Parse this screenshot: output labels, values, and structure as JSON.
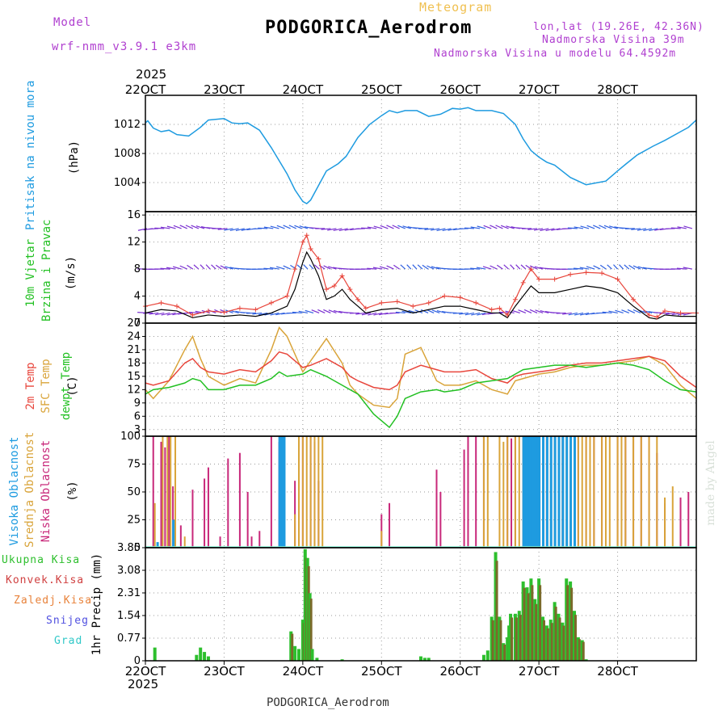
{
  "header": {
    "model_label": "Model",
    "model_name": "wrf-nmm_v3.9.1 e3km",
    "chart_kind": "Meteogram",
    "station": "PODGORICA_Aerodrom",
    "lonlat": "lon,lat (19.26E, 42.36N)",
    "elevation": "Nadmorska Visina 39m",
    "model_elevation": "Nadmorska Visina u modelu 64.4592m",
    "year_top": "2025",
    "year_bottom": "2025",
    "footer_station": "PODGORICA_Aerodrom",
    "credit": "made by Angel"
  },
  "colors": {
    "pressure": "#1e9be0",
    "temp2m": "#e8463c",
    "sfctemp": "#d9a43a",
    "dewpt": "#22c022",
    "high_cloud": "#1e9be0",
    "mid_cloud": "#d9a43a",
    "low_cloud": "#c8287a",
    "total_precip": "#2dbf2d",
    "conv_precip": "#d04040",
    "frz_precip": "#e8823a",
    "snow": "#5050e0",
    "hail": "#30c8c8",
    "wind_speed": "#000000",
    "gust": "#e8463c",
    "magenta_label": "#b040d0"
  },
  "x_axis": {
    "ticks": [
      "22OCT",
      "23OCT",
      "24OCT",
      "25OCT",
      "26OCT",
      "27OCT",
      "28OCT"
    ]
  },
  "chart_data": [
    {
      "type": "line",
      "name": "pressure",
      "ylabel": "Pritisak na nivou mora",
      "unit": "(hPa)",
      "yticks": [
        "1004",
        "1008",
        "1012"
      ],
      "ylim": [
        1000,
        1016
      ],
      "series": [
        {
          "name": "MSLP",
          "x": [
            0,
            0.03,
            0.1,
            0.2,
            0.3,
            0.4,
            0.55,
            0.7,
            0.8,
            1.0,
            1.1,
            1.2,
            1.3,
            1.45,
            1.6,
            1.8,
            1.9,
            2.0,
            2.05,
            2.1,
            2.2,
            2.3,
            2.45,
            2.55,
            2.7,
            2.85,
            3.0,
            3.1,
            3.2,
            3.3,
            3.45,
            3.6,
            3.75,
            3.9,
            4.0,
            4.1,
            4.2,
            4.4,
            4.55,
            4.7,
            4.8,
            4.9,
            5.0,
            5.1,
            5.2,
            5.4,
            5.6,
            5.75,
            5.85,
            6.0,
            6.1,
            6.25,
            6.45,
            6.6,
            6.8,
            6.9,
            7.0
          ],
          "values": [
            1012.2,
            1012.5,
            1011.5,
            1011.0,
            1011.2,
            1010.6,
            1010.4,
            1011.6,
            1012.6,
            1012.8,
            1012.2,
            1012.1,
            1012.2,
            1011.2,
            1008.8,
            1005.2,
            1003.0,
            1001.4,
            1001.1,
            1001.6,
            1003.6,
            1005.6,
            1006.6,
            1007.6,
            1010.2,
            1012.0,
            1013.2,
            1013.9,
            1013.6,
            1013.9,
            1013.9,
            1013.1,
            1013.4,
            1014.2,
            1014.1,
            1014.3,
            1013.9,
            1013.9,
            1013.5,
            1012.0,
            1010.0,
            1008.4,
            1007.5,
            1006.8,
            1006.4,
            1004.7,
            1003.7,
            1004.0,
            1004.2,
            1005.6,
            1006.5,
            1007.8,
            1009.0,
            1009.8,
            1011.0,
            1011.6,
            1012.6
          ]
        }
      ]
    },
    {
      "type": "line",
      "name": "wind",
      "ylabel": "10m Vjetar",
      "ylabel2": "Brzina i Pravac",
      "unit": "(m/s)",
      "compass": "N",
      "yticks": [
        "0",
        "4",
        "8",
        "12",
        "16"
      ],
      "ylim": [
        0,
        16.5
      ],
      "series": [
        {
          "name": "wind speed",
          "x": [
            0,
            0.2,
            0.4,
            0.6,
            0.8,
            1.0,
            1.2,
            1.4,
            1.6,
            1.8,
            1.9,
            2.0,
            2.05,
            2.1,
            2.2,
            2.3,
            2.4,
            2.5,
            2.6,
            2.7,
            2.8,
            3.0,
            3.2,
            3.4,
            3.6,
            3.8,
            4.0,
            4.2,
            4.4,
            4.5,
            4.6,
            4.7,
            4.8,
            4.9,
            5.0,
            5.2,
            5.4,
            5.6,
            5.8,
            6.0,
            6.2,
            6.4,
            6.5,
            6.6,
            6.8,
            7.0
          ],
          "values": [
            1.5,
            2.0,
            1.8,
            0.8,
            1.2,
            1.0,
            1.2,
            1.0,
            1.5,
            2.5,
            5.0,
            9.0,
            10.5,
            9.5,
            7.0,
            3.5,
            4.0,
            5.0,
            3.5,
            2.5,
            1.5,
            2.0,
            2.2,
            1.5,
            2.0,
            2.5,
            2.5,
            2.0,
            1.5,
            1.5,
            0.8,
            2.5,
            4.0,
            5.5,
            4.5,
            4.5,
            5.0,
            5.5,
            5.2,
            4.5,
            2.5,
            0.8,
            0.6,
            1.2,
            1.0,
            1.0
          ]
        },
        {
          "name": "gust",
          "x": [
            0,
            0.2,
            0.4,
            0.6,
            0.8,
            1.0,
            1.2,
            1.4,
            1.6,
            1.8,
            1.9,
            2.0,
            2.05,
            2.1,
            2.2,
            2.3,
            2.4,
            2.5,
            2.6,
            2.7,
            2.8,
            3.0,
            3.2,
            3.4,
            3.6,
            3.8,
            4.0,
            4.2,
            4.4,
            4.5,
            4.6,
            4.7,
            4.8,
            4.9,
            5.0,
            5.2,
            5.4,
            5.6,
            5.8,
            6.0,
            6.2,
            6.4,
            6.5,
            6.6,
            6.8,
            7.0
          ],
          "values": [
            2.5,
            3.0,
            2.5,
            1.2,
            1.8,
            1.6,
            2.2,
            2.0,
            3.0,
            4.0,
            8.0,
            12.0,
            13.0,
            11.0,
            9.5,
            5.0,
            5.5,
            7.0,
            5.0,
            3.5,
            2.2,
            3.0,
            3.2,
            2.5,
            3.0,
            4.0,
            3.8,
            3.0,
            2.0,
            2.2,
            1.2,
            3.5,
            6.0,
            8.0,
            6.5,
            6.5,
            7.2,
            7.5,
            7.4,
            6.5,
            3.5,
            1.2,
            0.9,
            1.8,
            1.5,
            1.5
          ]
        }
      ],
      "arrow_rows": [
        1.5,
        8,
        14
      ]
    },
    {
      "type": "line",
      "name": "temperature",
      "ylabel": "2m Temp",
      "ylabel2": "SFC Temp",
      "ylabel3": "dewpt Temp",
      "unit": "(C)",
      "yticks": [
        "3",
        "6",
        "9",
        "12",
        "15",
        "18",
        "21",
        "24",
        "27"
      ],
      "ylim": [
        1.5,
        27
      ],
      "series": [
        {
          "name": "2m Temp",
          "x": [
            0,
            0.1,
            0.3,
            0.5,
            0.6,
            0.7,
            0.8,
            1.0,
            1.2,
            1.4,
            1.6,
            1.7,
            1.8,
            2.0,
            2.1,
            2.3,
            2.5,
            2.6,
            2.7,
            2.9,
            3.1,
            3.2,
            3.3,
            3.5,
            3.7,
            3.8,
            4.0,
            4.2,
            4.4,
            4.6,
            4.7,
            4.8,
            5.0,
            5.2,
            5.4,
            5.6,
            5.8,
            6.0,
            6.2,
            6.4,
            6.6,
            6.8,
            7.0
          ],
          "values": [
            13.5,
            13.0,
            14.0,
            18.0,
            19.0,
            17.0,
            16.0,
            15.5,
            16.5,
            16.0,
            18.5,
            20.5,
            20.0,
            17.0,
            17.5,
            19.0,
            17.0,
            15.0,
            14.0,
            12.5,
            12.0,
            13.0,
            16.0,
            17.5,
            16.5,
            16.0,
            16.0,
            16.5,
            14.5,
            13.5,
            15.0,
            15.5,
            16.0,
            16.5,
            17.5,
            18.0,
            18.0,
            18.5,
            19.0,
            19.5,
            18.5,
            15.0,
            12.5
          ]
        },
        {
          "name": "SFC Temp",
          "x": [
            0,
            0.1,
            0.3,
            0.5,
            0.6,
            0.7,
            0.8,
            1.0,
            1.2,
            1.4,
            1.6,
            1.7,
            1.8,
            2.0,
            2.1,
            2.3,
            2.5,
            2.6,
            2.7,
            2.9,
            3.1,
            3.2,
            3.3,
            3.5,
            3.7,
            3.8,
            4.0,
            4.2,
            4.4,
            4.6,
            4.7,
            4.8,
            5.0,
            5.2,
            5.4,
            5.6,
            5.8,
            6.0,
            6.2,
            6.4,
            6.6,
            6.8,
            7.0
          ],
          "values": [
            12.0,
            10.0,
            14.0,
            21.0,
            24.0,
            19.0,
            15.0,
            13.0,
            14.5,
            13.5,
            21.0,
            26.0,
            24.0,
            16.0,
            18.5,
            23.5,
            18.0,
            13.0,
            11.0,
            8.5,
            8.0,
            10.0,
            20.0,
            21.5,
            14.0,
            13.0,
            13.0,
            14.0,
            12.0,
            11.0,
            14.0,
            14.5,
            15.5,
            16.0,
            17.0,
            17.5,
            17.5,
            18.0,
            18.5,
            19.5,
            17.5,
            13.0,
            10.0
          ]
        },
        {
          "name": "dewpt Temp",
          "x": [
            0,
            0.1,
            0.3,
            0.5,
            0.6,
            0.7,
            0.8,
            1.0,
            1.2,
            1.4,
            1.6,
            1.7,
            1.8,
            2.0,
            2.1,
            2.3,
            2.5,
            2.6,
            2.7,
            2.9,
            3.1,
            3.2,
            3.3,
            3.5,
            3.7,
            3.8,
            4.0,
            4.2,
            4.4,
            4.6,
            4.7,
            4.8,
            5.0,
            5.2,
            5.4,
            5.6,
            5.8,
            6.0,
            6.2,
            6.4,
            6.6,
            6.8,
            7.0
          ],
          "values": [
            11.0,
            12.0,
            12.5,
            13.5,
            14.5,
            14.0,
            12.0,
            12.0,
            13.0,
            13.0,
            14.5,
            16.0,
            15.0,
            15.5,
            16.5,
            15.0,
            13.0,
            12.0,
            11.0,
            6.5,
            3.5,
            6.0,
            10.0,
            11.5,
            12.0,
            11.5,
            12.0,
            13.5,
            14.0,
            14.5,
            15.5,
            16.5,
            17.0,
            17.5,
            17.5,
            17.0,
            17.5,
            18.0,
            17.5,
            16.5,
            14.0,
            12.0,
            11.5
          ]
        }
      ]
    },
    {
      "type": "bar",
      "name": "clouds",
      "ylabel": "Visoka Oblacnost",
      "ylabel2": "Srednja Oblacnost",
      "ylabel3": "Niska Oblacnost",
      "unit": "(%)",
      "yticks": [
        "0",
        "25",
        "50",
        "75",
        "100"
      ],
      "ylim": [
        0,
        100
      ],
      "series": [
        {
          "name": "Niska",
          "x": [
            0.1,
            0.2,
            0.25,
            0.3,
            0.35,
            0.45,
            0.6,
            0.75,
            0.8,
            0.95,
            1.05,
            1.2,
            1.3,
            1.35,
            1.45,
            1.6,
            1.7,
            1.75,
            1.9,
            2.0,
            2.1,
            2.15,
            2.2,
            3.0,
            3.1,
            3.7,
            3.75,
            4.05,
            4.1,
            4.2,
            4.3,
            4.6,
            4.65,
            4.7,
            4.8,
            4.9,
            5.0,
            5.1,
            5.2,
            5.3,
            5.4,
            5.5,
            5.6,
            5.7,
            5.8,
            6.0,
            6.1,
            6.2,
            6.3,
            6.4,
            6.5,
            6.6,
            6.8,
            6.9
          ],
          "values": [
            100,
            95,
            90,
            100,
            55,
            20,
            52,
            62,
            72,
            10,
            80,
            85,
            50,
            10,
            15,
            100,
            95,
            100,
            60,
            100,
            100,
            95,
            60,
            30,
            40,
            70,
            50,
            88,
            100,
            100,
            100,
            100,
            98,
            100,
            100,
            100,
            100,
            100,
            100,
            100,
            100,
            100,
            100,
            100,
            100,
            100,
            100,
            100,
            100,
            100,
            85,
            40,
            45,
            50
          ]
        },
        {
          "name": "Srednja",
          "x": [
            0.12,
            0.22,
            0.28,
            0.32,
            0.38,
            0.5,
            1.9,
            1.95,
            2.0,
            2.05,
            2.1,
            2.15,
            2.2,
            2.25,
            3.0,
            4.3,
            4.35,
            4.5,
            4.55,
            4.6,
            4.7,
            4.75,
            4.8,
            4.85,
            4.9,
            4.95,
            5.0,
            5.05,
            5.1,
            5.15,
            5.2,
            5.25,
            5.3,
            5.35,
            5.4,
            5.5,
            5.55,
            5.6,
            5.65,
            5.7,
            5.8,
            5.85,
            5.9,
            6.0,
            6.05,
            6.1,
            6.2,
            6.3,
            6.4,
            6.5,
            6.6,
            6.7
          ],
          "values": [
            40,
            100,
            100,
            100,
            100,
            10,
            30,
            100,
            100,
            100,
            100,
            100,
            100,
            100,
            15,
            100,
            100,
            100,
            95,
            100,
            100,
            100,
            100,
            100,
            100,
            100,
            100,
            100,
            100,
            100,
            100,
            100,
            100,
            100,
            100,
            100,
            100,
            100,
            100,
            100,
            100,
            100,
            100,
            100,
            100,
            100,
            100,
            100,
            100,
            100,
            45,
            55
          ]
        },
        {
          "name": "Visoka",
          "x": [
            0.15,
            0.35,
            1.7,
            1.72,
            1.74,
            1.76,
            4.8,
            4.82,
            4.84,
            4.86,
            4.88,
            4.9,
            4.92,
            4.94,
            4.96,
            4.98,
            5.0,
            5.05,
            5.1,
            5.15,
            5.2,
            5.25,
            5.3,
            5.35,
            5.4,
            5.45
          ],
          "values": [
            5,
            25,
            100,
            100,
            100,
            100,
            100,
            100,
            100,
            100,
            100,
            100,
            100,
            100,
            100,
            100,
            100,
            100,
            100,
            100,
            100,
            100,
            100,
            100,
            100,
            100
          ]
        }
      ]
    },
    {
      "type": "bar",
      "name": "precipitation",
      "ylabel": "1hr Precip (mm)",
      "legend": [
        "Ukupna Kisa",
        "Konvek.Kisa",
        "Zaledj.Kisa",
        "Snijeg",
        "Grad"
      ],
      "yticks": [
        "0",
        "0.77",
        "1.54",
        "2.31",
        "3.08",
        "3.85"
      ],
      "ylim": [
        0,
        3.85
      ],
      "series": [
        {
          "name": "Ukupna Kisa",
          "x": [
            0.12,
            0.65,
            0.7,
            0.75,
            0.8,
            1.85,
            1.9,
            1.95,
            2.0,
            2.03,
            2.06,
            2.09,
            2.12,
            2.18,
            2.5,
            3.5,
            3.55,
            3.6,
            4.3,
            4.35,
            4.4,
            4.45,
            4.5,
            4.55,
            4.6,
            4.62,
            4.64,
            4.7,
            4.75,
            4.8,
            4.85,
            4.9,
            4.95,
            5.0,
            5.05,
            5.1,
            5.15,
            5.2,
            5.25,
            5.3,
            5.35,
            5.4,
            5.45,
            5.5,
            5.55,
            5.6
          ],
          "values": [
            0.45,
            0.2,
            0.45,
            0.3,
            0.15,
            1.0,
            0.5,
            0.4,
            1.4,
            3.8,
            3.5,
            2.3,
            0.4,
            0.1,
            0.05,
            0.15,
            0.1,
            0.1,
            0.2,
            0.35,
            1.5,
            3.7,
            1.5,
            0.6,
            0.8,
            1.2,
            1.6,
            1.6,
            1.7,
            2.7,
            2.5,
            2.8,
            2.1,
            2.8,
            1.5,
            1.2,
            1.4,
            2.0,
            1.6,
            1.3,
            2.8,
            2.7,
            1.7,
            0.8,
            0.7,
            0.05
          ]
        }
      ]
    }
  ]
}
